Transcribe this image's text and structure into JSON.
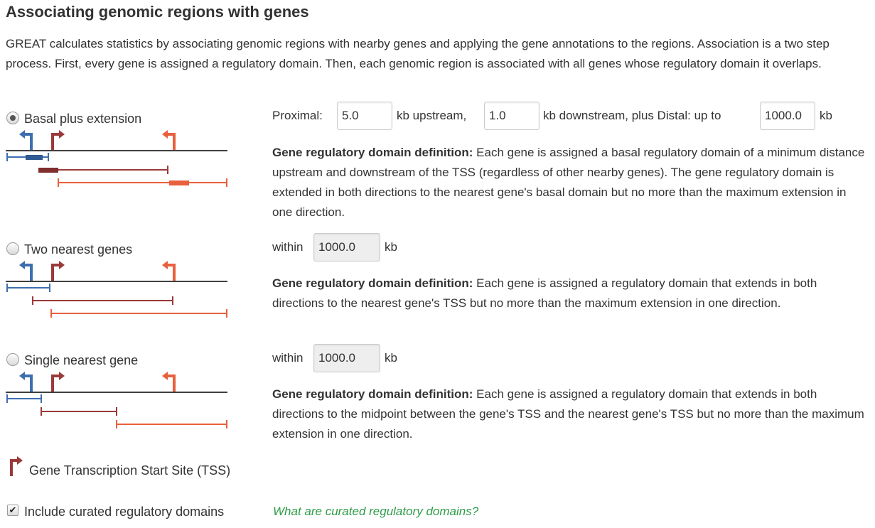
{
  "title": "Associating genomic regions with genes",
  "intro": "GREAT calculates statistics by associating genomic regions with nearby genes and applying the gene annotations to the regions. Association is a two step process. First, every gene is assigned a regulatory domain. Then, each genomic region is associated with all genes whose regulatory domain it overlaps.",
  "options": {
    "basal": {
      "label": "Basal plus extension",
      "selected": true,
      "proximal_label": "Proximal:",
      "upstream_value": "5.0",
      "upstream_label": "kb upstream,",
      "downstream_value": "1.0",
      "downstream_label": "kb downstream, plus Distal: up to",
      "distal_value": "1000.0",
      "distal_unit": "kb",
      "def_head": "Gene regulatory domain definition:",
      "def_text": " Each gene is assigned a basal regulatory domain of a minimum distance upstream and downstream of the TSS (regardless of other nearby genes). The gene regulatory domain is extended in both directions to the nearest gene's basal domain but no more than the maximum extension in one direction."
    },
    "two_nearest": {
      "label": "Two nearest genes",
      "selected": false,
      "within_label": "within",
      "value": "1000.0",
      "unit": "kb",
      "def_head": "Gene regulatory domain definition:",
      "def_text": " Each gene is assigned a regulatory domain that extends in both directions to the nearest gene's TSS but no more than the maximum extension in one direction."
    },
    "single_nearest": {
      "label": "Single nearest gene",
      "selected": false,
      "within_label": "within",
      "value": "1000.0",
      "unit": "kb",
      "def_head": "Gene regulatory domain definition:",
      "def_text": " Each gene is assigned a regulatory domain that extends in both directions to the midpoint between the gene's TSS and the nearest gene's TSS but no more than the maximum extension in one direction."
    }
  },
  "legend": {
    "label": "Gene Transcription Start Site (TSS)"
  },
  "curated": {
    "label": "Include curated regulatory domains",
    "checked": true,
    "help_link": "What are curated regulatory domains?"
  },
  "colors": {
    "blue_gene": "#3d6fb0",
    "red_gene": "#9a3a3a",
    "orange_gene": "#e8603c",
    "link_green": "#2e9c47"
  }
}
